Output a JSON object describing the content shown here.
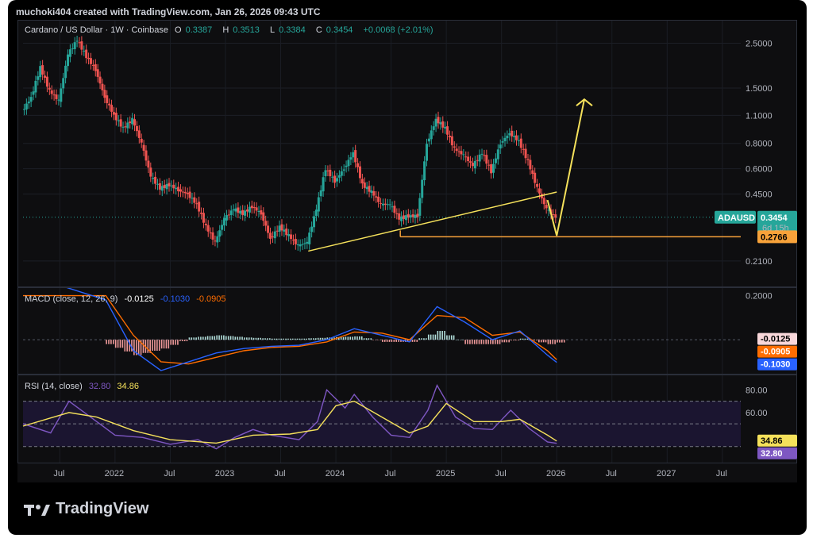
{
  "header": {
    "credit": "muchoki404 created with TradingView.com, Jan 26, 2026 09:43 UTC"
  },
  "brand": {
    "name": "TradingView"
  },
  "colors": {
    "up": "#26a69a",
    "down": "#ef5350",
    "drawing": "#f5e15b",
    "support": "#f7a23a",
    "macd": "#2962ff",
    "signal": "#ff6d00",
    "rsi": "#7e57c2",
    "rsi_ma": "#f5e15b"
  },
  "chart_data": [
    {
      "type": "candlestick",
      "legend": {
        "symbol": "Cardano / US Dollar · 1W · Coinbase",
        "open_label": "O",
        "open": "0.3387",
        "high_label": "H",
        "high": "0.3513",
        "low_label": "L",
        "low": "0.3384",
        "close_label": "C",
        "close": "0.3454",
        "change": "+0.0068 (+2.01%)"
      },
      "scale": "log",
      "y_ticks": [
        "2.5000",
        "1.5000",
        "1.1000",
        "0.8000",
        "0.6000",
        "0.4500",
        "0.2100"
      ],
      "y_tick_values": [
        2.5,
        1.5,
        1.1,
        0.8,
        0.6,
        0.45,
        0.21
      ],
      "ylim": [
        0.18,
        2.9
      ],
      "x_ticks": [
        "Jul",
        "2022",
        "Jul",
        "2023",
        "Jul",
        "2024",
        "Jul",
        "2025",
        "Jul",
        "2026",
        "Jul",
        "2027",
        "Jul"
      ],
      "x_tick_dates": [
        "2021-07",
        "2022-01",
        "2022-07",
        "2023-01",
        "2023-07",
        "2024-01",
        "2024-07",
        "2025-01",
        "2025-07",
        "2026-01",
        "2026-07",
        "2027-01",
        "2027-07"
      ],
      "xlim": [
        "2021-03",
        "2027-09"
      ],
      "series_close": [
        [
          "2021-03",
          1.15
        ],
        [
          "2021-04",
          1.35
        ],
        [
          "2021-05",
          1.9
        ],
        [
          "2021-06",
          1.45
        ],
        [
          "2021-07",
          1.3
        ],
        [
          "2021-08",
          2.2
        ],
        [
          "2021-09",
          2.6
        ],
        [
          "2021-10",
          2.15
        ],
        [
          "2021-11",
          1.85
        ],
        [
          "2021-12",
          1.35
        ],
        [
          "2022-01",
          1.1
        ],
        [
          "2022-02",
          0.95
        ],
        [
          "2022-03",
          1.05
        ],
        [
          "2022-04",
          0.8
        ],
        [
          "2022-05",
          0.55
        ],
        [
          "2022-06",
          0.48
        ],
        [
          "2022-07",
          0.5
        ],
        [
          "2022-08",
          0.47
        ],
        [
          "2022-09",
          0.45
        ],
        [
          "2022-10",
          0.4
        ],
        [
          "2022-11",
          0.31
        ],
        [
          "2022-12",
          0.26
        ],
        [
          "2023-01",
          0.34
        ],
        [
          "2023-02",
          0.38
        ],
        [
          "2023-03",
          0.36
        ],
        [
          "2023-04",
          0.39
        ],
        [
          "2023-05",
          0.36
        ],
        [
          "2023-06",
          0.27
        ],
        [
          "2023-07",
          0.31
        ],
        [
          "2023-08",
          0.28
        ],
        [
          "2023-09",
          0.25
        ],
        [
          "2023-10",
          0.26
        ],
        [
          "2023-11",
          0.38
        ],
        [
          "2023-12",
          0.6
        ],
        [
          "2024-01",
          0.52
        ],
        [
          "2024-02",
          0.6
        ],
        [
          "2024-03",
          0.72
        ],
        [
          "2024-04",
          0.5
        ],
        [
          "2024-05",
          0.46
        ],
        [
          "2024-06",
          0.4
        ],
        [
          "2024-07",
          0.4
        ],
        [
          "2024-08",
          0.34
        ],
        [
          "2024-09",
          0.35
        ],
        [
          "2024-10",
          0.35
        ],
        [
          "2024-11",
          0.8
        ],
        [
          "2024-12",
          1.05
        ],
        [
          "2025-01",
          0.95
        ],
        [
          "2025-02",
          0.75
        ],
        [
          "2025-03",
          0.7
        ],
        [
          "2025-04",
          0.62
        ],
        [
          "2025-05",
          0.72
        ],
        [
          "2025-06",
          0.58
        ],
        [
          "2025-07",
          0.8
        ],
        [
          "2025-08",
          0.9
        ],
        [
          "2025-09",
          0.82
        ],
        [
          "2025-10",
          0.65
        ],
        [
          "2025-11",
          0.48
        ],
        [
          "2025-12",
          0.38
        ],
        [
          "2026-01",
          0.3454
        ]
      ],
      "last_price_label": {
        "symbol": "ADAUSD",
        "price": "0.3454",
        "countdown": "6d 15h"
      },
      "support_label": "0.2766",
      "support_value": 0.2766,
      "trendline": [
        [
          "2023-10",
          0.235
        ],
        [
          "2026-01",
          0.46
        ]
      ],
      "projection": [
        [
          "2025-12",
          0.42
        ],
        [
          "2026-01",
          0.28
        ],
        [
          "2026-04",
          1.32
        ]
      ]
    },
    {
      "type": "line",
      "legend": {
        "name": "MACD (close, 12, 26, 9)",
        "hist": "-0.0125",
        "macd": "-0.1030",
        "signal": "-0.0905"
      },
      "y_ticks": [
        "0.2000"
      ],
      "y_tick_values": [
        0.2
      ],
      "ylim": [
        -0.14,
        0.22
      ],
      "value_labels": [
        "-0.0125",
        "-0.0905",
        "-0.1030"
      ],
      "macd": [
        [
          "2021-03",
          0.3
        ],
        [
          "2021-12",
          0.18
        ],
        [
          "2022-03",
          -0.05
        ],
        [
          "2022-06",
          -0.14
        ],
        [
          "2022-09",
          -0.1
        ],
        [
          "2022-12",
          -0.06
        ],
        [
          "2023-03",
          -0.04
        ],
        [
          "2023-06",
          -0.03
        ],
        [
          "2023-09",
          -0.025
        ],
        [
          "2023-12",
          0.0
        ],
        [
          "2024-03",
          0.05
        ],
        [
          "2024-06",
          0.02
        ],
        [
          "2024-09",
          -0.01
        ],
        [
          "2024-12",
          0.15
        ],
        [
          "2025-03",
          0.08
        ],
        [
          "2025-06",
          0.0
        ],
        [
          "2025-09",
          0.04
        ],
        [
          "2025-12",
          -0.07
        ],
        [
          "2026-01",
          -0.103
        ]
      ],
      "signal": [
        [
          "2021-03",
          0.2
        ],
        [
          "2021-12",
          0.2
        ],
        [
          "2022-03",
          0.02
        ],
        [
          "2022-06",
          -0.1
        ],
        [
          "2022-09",
          -0.11
        ],
        [
          "2022-12",
          -0.08
        ],
        [
          "2023-03",
          -0.05
        ],
        [
          "2023-06",
          -0.035
        ],
        [
          "2023-09",
          -0.03
        ],
        [
          "2023-12",
          -0.01
        ],
        [
          "2024-03",
          0.035
        ],
        [
          "2024-06",
          0.03
        ],
        [
          "2024-09",
          0.0
        ],
        [
          "2024-12",
          0.11
        ],
        [
          "2025-03",
          0.1
        ],
        [
          "2025-06",
          0.02
        ],
        [
          "2025-09",
          0.035
        ],
        [
          "2025-12",
          -0.05
        ],
        [
          "2026-01",
          -0.0905
        ]
      ]
    },
    {
      "type": "line",
      "legend": {
        "name": "RSI (14, close)",
        "rsi": "32.80",
        "ma": "34.86"
      },
      "y_ticks": [
        "80.00",
        "60.00"
      ],
      "y_tick_values": [
        80,
        60
      ],
      "bands": [
        70,
        50,
        30
      ],
      "ylim": [
        20,
        90
      ],
      "value_labels": [
        "34.86",
        "32.80"
      ],
      "rsi": [
        [
          "2021-03",
          50
        ],
        [
          "2021-06",
          42
        ],
        [
          "2021-08",
          70
        ],
        [
          "2021-10",
          58
        ],
        [
          "2022-01",
          40
        ],
        [
          "2022-04",
          38
        ],
        [
          "2022-07",
          32
        ],
        [
          "2022-10",
          36
        ],
        [
          "2022-12",
          28
        ],
        [
          "2023-02",
          38
        ],
        [
          "2023-04",
          45
        ],
        [
          "2023-06",
          40
        ],
        [
          "2023-09",
          36
        ],
        [
          "2023-11",
          52
        ],
        [
          "2023-12",
          80
        ],
        [
          "2024-02",
          64
        ],
        [
          "2024-03",
          76
        ],
        [
          "2024-05",
          56
        ],
        [
          "2024-07",
          40
        ],
        [
          "2024-09",
          38
        ],
        [
          "2024-11",
          62
        ],
        [
          "2024-12",
          84
        ],
        [
          "2025-02",
          56
        ],
        [
          "2025-04",
          46
        ],
        [
          "2025-06",
          45
        ],
        [
          "2025-08",
          62
        ],
        [
          "2025-10",
          46
        ],
        [
          "2025-12",
          34
        ],
        [
          "2026-01",
          32.8
        ]
      ],
      "rsi_ma": [
        [
          "2021-03",
          48
        ],
        [
          "2021-08",
          60
        ],
        [
          "2021-11",
          56
        ],
        [
          "2022-03",
          44
        ],
        [
          "2022-07",
          36
        ],
        [
          "2022-12",
          33
        ],
        [
          "2023-04",
          40
        ],
        [
          "2023-08",
          41
        ],
        [
          "2023-11",
          45
        ],
        [
          "2024-01",
          66
        ],
        [
          "2024-03",
          70
        ],
        [
          "2024-06",
          56
        ],
        [
          "2024-09",
          42
        ],
        [
          "2024-11",
          48
        ],
        [
          "2025-01",
          68
        ],
        [
          "2025-04",
          52
        ],
        [
          "2025-07",
          52
        ],
        [
          "2025-09",
          54
        ],
        [
          "2025-12",
          40
        ],
        [
          "2026-01",
          34.86
        ]
      ]
    }
  ]
}
